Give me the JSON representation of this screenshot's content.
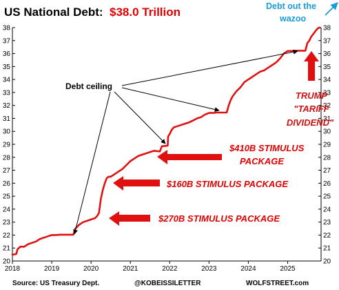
{
  "chart_data": {
    "type": "line",
    "title": "US National Debt:",
    "title_value": "$38.0 Trillion",
    "xlabel": "",
    "ylabel": "",
    "xlim": [
      2018.0,
      2025.85
    ],
    "ylim": [
      20,
      38
    ],
    "x_ticks": [
      2018,
      2019,
      2020,
      2021,
      2022,
      2023,
      2024,
      2025
    ],
    "y_ticks": [
      20,
      21,
      22,
      23,
      24,
      25,
      26,
      27,
      28,
      29,
      30,
      31,
      32,
      33,
      34,
      35,
      36,
      37,
      38
    ],
    "grid": false,
    "line_color": "#e01010",
    "series": [
      {
        "x": [
          2018.0,
          2018.04,
          2018.1,
          2018.13,
          2018.2,
          2018.3,
          2018.4,
          2018.5,
          2018.6,
          2018.7,
          2018.8,
          2018.9,
          2019.0,
          2019.1,
          2019.2,
          2019.3,
          2019.55,
          2019.6,
          2019.7,
          2019.8,
          2019.9,
          2020.0,
          2020.1,
          2020.15,
          2020.2,
          2020.25,
          2020.3,
          2020.35,
          2020.4,
          2020.45,
          2020.5,
          2020.6,
          2020.7,
          2020.8,
          2020.9,
          2021.0,
          2021.1,
          2021.2,
          2021.3,
          2021.4,
          2021.5,
          2021.6,
          2021.75,
          2021.8,
          2021.95,
          2021.96,
          2022.0,
          2022.05,
          2022.1,
          2022.2,
          2022.3,
          2022.4,
          2022.5,
          2022.6,
          2022.7,
          2022.8,
          2022.9,
          2023.0,
          2023.1,
          2023.2,
          2023.3,
          2023.45,
          2023.5,
          2023.55,
          2023.6,
          2023.7,
          2023.8,
          2023.9,
          2024.0,
          2024.1,
          2024.2,
          2024.3,
          2024.4,
          2024.5,
          2024.6,
          2024.7,
          2024.8,
          2024.9,
          2025.0,
          2025.1,
          2025.2,
          2025.3,
          2025.45,
          2025.5,
          2025.55,
          2025.6,
          2025.65,
          2025.7,
          2025.75,
          2025.8,
          2025.82
        ],
        "y": [
          20.5,
          20.5,
          20.55,
          20.9,
          21.1,
          21.1,
          21.3,
          21.4,
          21.5,
          21.7,
          21.8,
          21.9,
          22.0,
          22.0,
          22.03,
          22.03,
          22.03,
          22.5,
          22.8,
          23.0,
          23.1,
          23.2,
          23.3,
          23.45,
          23.7,
          24.8,
          25.5,
          26.0,
          26.4,
          26.5,
          26.5,
          26.7,
          26.9,
          27.1,
          27.4,
          27.7,
          27.9,
          28.1,
          28.2,
          28.3,
          28.4,
          28.5,
          28.45,
          28.85,
          28.9,
          29.6,
          29.8,
          30.1,
          30.3,
          30.4,
          30.5,
          30.6,
          30.7,
          30.85,
          31.0,
          31.1,
          31.3,
          31.42,
          31.42,
          31.45,
          31.45,
          31.45,
          32.0,
          32.4,
          32.7,
          33.1,
          33.4,
          33.8,
          34.0,
          34.2,
          34.4,
          34.6,
          34.7,
          34.9,
          35.1,
          35.3,
          35.6,
          36.0,
          36.2,
          36.2,
          36.22,
          36.22,
          36.22,
          36.8,
          37.0,
          37.3,
          37.5,
          37.7,
          37.9,
          38.0,
          38.0
        ]
      }
    ],
    "annotations": {
      "debt_ceiling": "Debt ceiling",
      "stimulus_410": "$410B STIMULUS",
      "stimulus_410_2": "PACKAGE",
      "stimulus_160": "$160B STIMULUS PACKAGE",
      "stimulus_270": "$270B STIMULUS PACKAGE",
      "trump_1": "TRUMP",
      "trump_2": "\"TARIFF",
      "trump_3": "DIVIDEND\"",
      "wazoo_1": "Debt out the",
      "wazoo_2": "wazoo"
    },
    "footer": {
      "source": "Source: US Treasury Dept.",
      "handle": "@KOBEISSILETTER",
      "site": "WOLFSTREET.com"
    },
    "colors": {
      "line": "#e01010",
      "title_value": "#e00000",
      "wazoo": "#1a9bd7",
      "red_arrows": "#e01010"
    }
  }
}
